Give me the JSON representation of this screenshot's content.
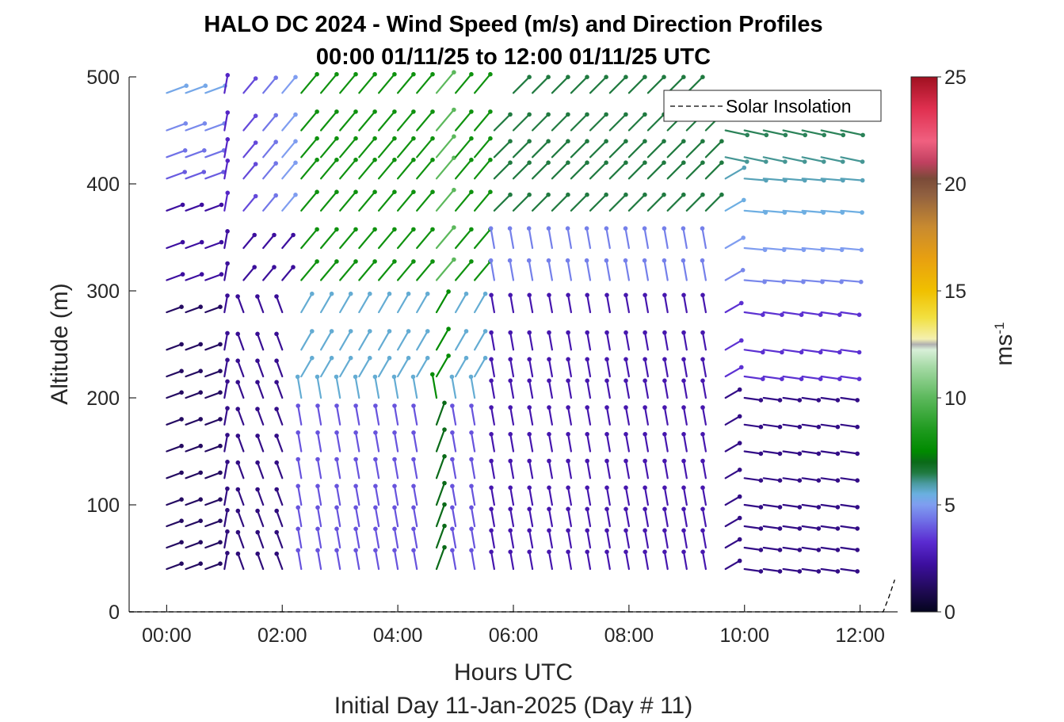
{
  "chart_data": {
    "type": "quiver",
    "title_line1": "HALO DC 2024 - Wind Speed (m/s) and Direction Profiles",
    "title_line2": "00:00 01/11/25 to 12:00 01/11/25  UTC",
    "xlabel": "Hours UTC",
    "xlabel2": "Initial Day 11-Jan-2025 (Day # 11)",
    "ylabel": "Altitude (m)",
    "xlim": [
      -0.65,
      12.65
    ],
    "ylim": [
      0,
      500
    ],
    "x_ticks": [
      0,
      2,
      4,
      6,
      8,
      10,
      12
    ],
    "x_tick_labels": [
      "00:00",
      "02:00",
      "04:00",
      "06:00",
      "08:00",
      "10:00",
      "12:00"
    ],
    "y_ticks": [
      0,
      100,
      200,
      300,
      400,
      500
    ],
    "y_tick_labels": [
      "0",
      "100",
      "200",
      "300",
      "400",
      "500"
    ],
    "colorbar": {
      "label": "ms",
      "label_exponent": "-1",
      "range": [
        0,
        25
      ],
      "ticks": [
        0,
        5,
        10,
        15,
        20,
        25
      ],
      "tick_labels": [
        "0",
        "5",
        "10",
        "15",
        "20",
        "25"
      ]
    },
    "legend": {
      "entries": [
        "Solar Insolation"
      ],
      "placement": "top-right"
    },
    "solar_insolation": {
      "x": [
        -0.65,
        12.4,
        12.5,
        12.6
      ],
      "y": [
        0,
        0,
        14,
        30
      ]
    },
    "time_hours": [
      0.0,
      0.33,
      0.67,
      1.0,
      1.33,
      1.67,
      2.0,
      2.33,
      2.67,
      3.0,
      3.33,
      3.67,
      4.0,
      4.33,
      4.67,
      5.0,
      5.33,
      5.67,
      6.0,
      6.33,
      6.67,
      7.0,
      7.33,
      7.67,
      8.0,
      8.33,
      8.67,
      9.0,
      9.33,
      9.67,
      10.0,
      10.33,
      10.67,
      11.0,
      11.33,
      11.67
    ],
    "altitude_m": [
      40,
      60,
      80,
      100,
      125,
      150,
      175,
      200,
      220,
      245,
      280,
      310,
      340,
      375,
      405,
      425,
      450,
      485
    ],
    "speed_profile": [
      {
        "time_range": "00:00-01:00",
        "description": "low speeds (1-2 m/s) at all levels, blue-violet above 380 m (3-5 m/s)"
      },
      {
        "time_range": "02:30-05:30",
        "description": "upper levels 7-9 m/s (green), lower levels 3-5 m/s"
      },
      {
        "time_range": "09:30-12:00",
        "description": "westerly flow, 1-2 m/s near surface, 4-7 m/s above 300 m"
      }
    ]
  }
}
